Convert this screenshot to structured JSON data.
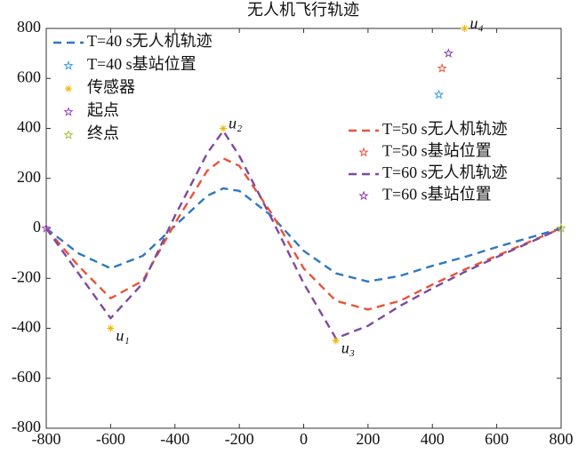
{
  "chart_data": {
    "type": "line",
    "title": "无人机飞行轨迹",
    "x": [
      -800,
      -700,
      -600,
      -500,
      -400,
      -300,
      -250,
      -200,
      -100,
      0,
      100,
      200,
      300,
      400,
      500,
      600,
      700,
      800
    ],
    "series": [
      {
        "name": "T=40 s无人机轨迹",
        "color": "#2e78c0",
        "dash": true,
        "values": [
          0,
          -100,
          -160,
          -110,
          10,
          130,
          160,
          150,
          50,
          -90,
          -180,
          -213,
          -190,
          -150,
          -115,
          -75,
          -38,
          0
        ]
      },
      {
        "name": "T=50 s无人机轨迹",
        "color": "#e8543a",
        "dash": true,
        "values": [
          0,
          -150,
          -280,
          -210,
          20,
          230,
          280,
          250,
          60,
          -160,
          -290,
          -325,
          -290,
          -225,
          -165,
          -110,
          -55,
          0
        ]
      },
      {
        "name": "T=60 s无人机轨迹",
        "color": "#7e4a9e",
        "dash": true,
        "values": [
          0,
          -180,
          -360,
          -220,
          50,
          300,
          390,
          290,
          40,
          -220,
          -440,
          -390,
          -310,
          -240,
          -175,
          -115,
          -58,
          0
        ]
      }
    ],
    "markers": [
      {
        "name": "T=40 s基站位置",
        "color": "#2e9ee0",
        "marker": "star",
        "x": [
          420
        ],
        "values": [
          535
        ]
      },
      {
        "name": "传感器",
        "color": "#f0b400",
        "marker": "asterisk",
        "x": [
          -600,
          -250,
          100,
          500
        ],
        "values": [
          -400,
          400,
          -450,
          800
        ]
      },
      {
        "name": "起点",
        "color": "#a040c0",
        "marker": "star",
        "x": [
          -800
        ],
        "values": [
          0
        ]
      },
      {
        "name": "终点",
        "color": "#a8c040",
        "marker": "star",
        "x": [
          800
        ],
        "values": [
          0
        ]
      },
      {
        "name": "T=50 s基站位置",
        "color": "#e8543a",
        "marker": "star",
        "x": [
          430
        ],
        "values": [
          640
        ]
      },
      {
        "name": "T=60 s基站位置",
        "color": "#8e3aa8",
        "marker": "star",
        "x": [
          450
        ],
        "values": [
          700
        ]
      }
    ],
    "annotations": [
      "u₁",
      "u₂",
      "u₃",
      "u₄"
    ],
    "xlim": [
      -800,
      800
    ],
    "ylim": [
      -800,
      800
    ],
    "xticks": [
      -800,
      -600,
      -400,
      -200,
      0,
      200,
      400,
      600,
      800
    ],
    "yticks": [
      -800,
      -600,
      -400,
      -200,
      0,
      200,
      400,
      600,
      800
    ]
  }
}
